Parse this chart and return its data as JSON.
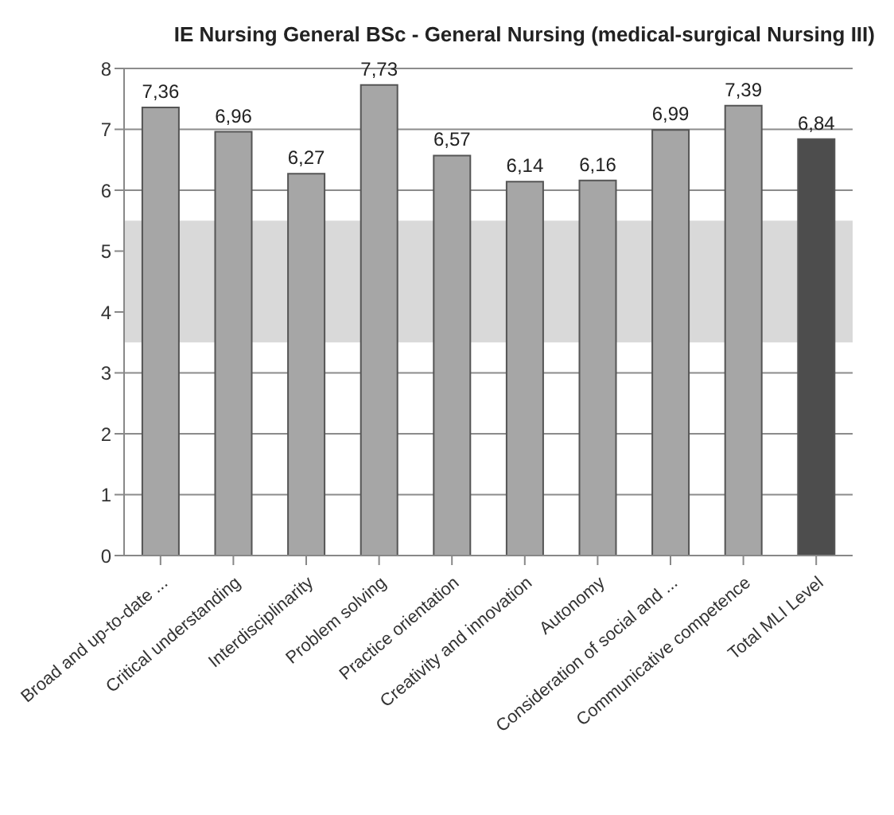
{
  "chart_data": {
    "type": "bar",
    "title": "IE Nursing General BSc - General Nursing (medical-surgical Nursing III)",
    "categories": [
      "Broad and up-to-date ...",
      "Critical understanding",
      "Interdisciplinarity",
      "Problem solving",
      "Practice orientation",
      "Creativity and innovation",
      "Autonomy",
      "Consideration of social and ...",
      "Communicative competence",
      "Total MLI Level"
    ],
    "values": [
      7.36,
      6.96,
      6.27,
      7.73,
      6.57,
      6.14,
      6.16,
      6.99,
      7.39,
      6.84
    ],
    "value_labels": [
      "7,36",
      "6,96",
      "6,27",
      "7,73",
      "6,57",
      "6,14",
      "6,16",
      "6,99",
      "7,39",
      "6,84"
    ],
    "colors": [
      "#a6a6a6",
      "#a6a6a6",
      "#a6a6a6",
      "#a6a6a6",
      "#a6a6a6",
      "#a6a6a6",
      "#a6a6a6",
      "#a6a6a6",
      "#a6a6a6",
      "#4d4d4d"
    ],
    "ylim": [
      0,
      8
    ],
    "yticks": [
      0,
      1,
      2,
      3,
      4,
      5,
      6,
      7,
      8
    ],
    "grid": "y",
    "bands": [
      {
        "axis": "y",
        "from": 3.5,
        "to": 5.5,
        "color": "#d9d9d9"
      }
    ]
  }
}
